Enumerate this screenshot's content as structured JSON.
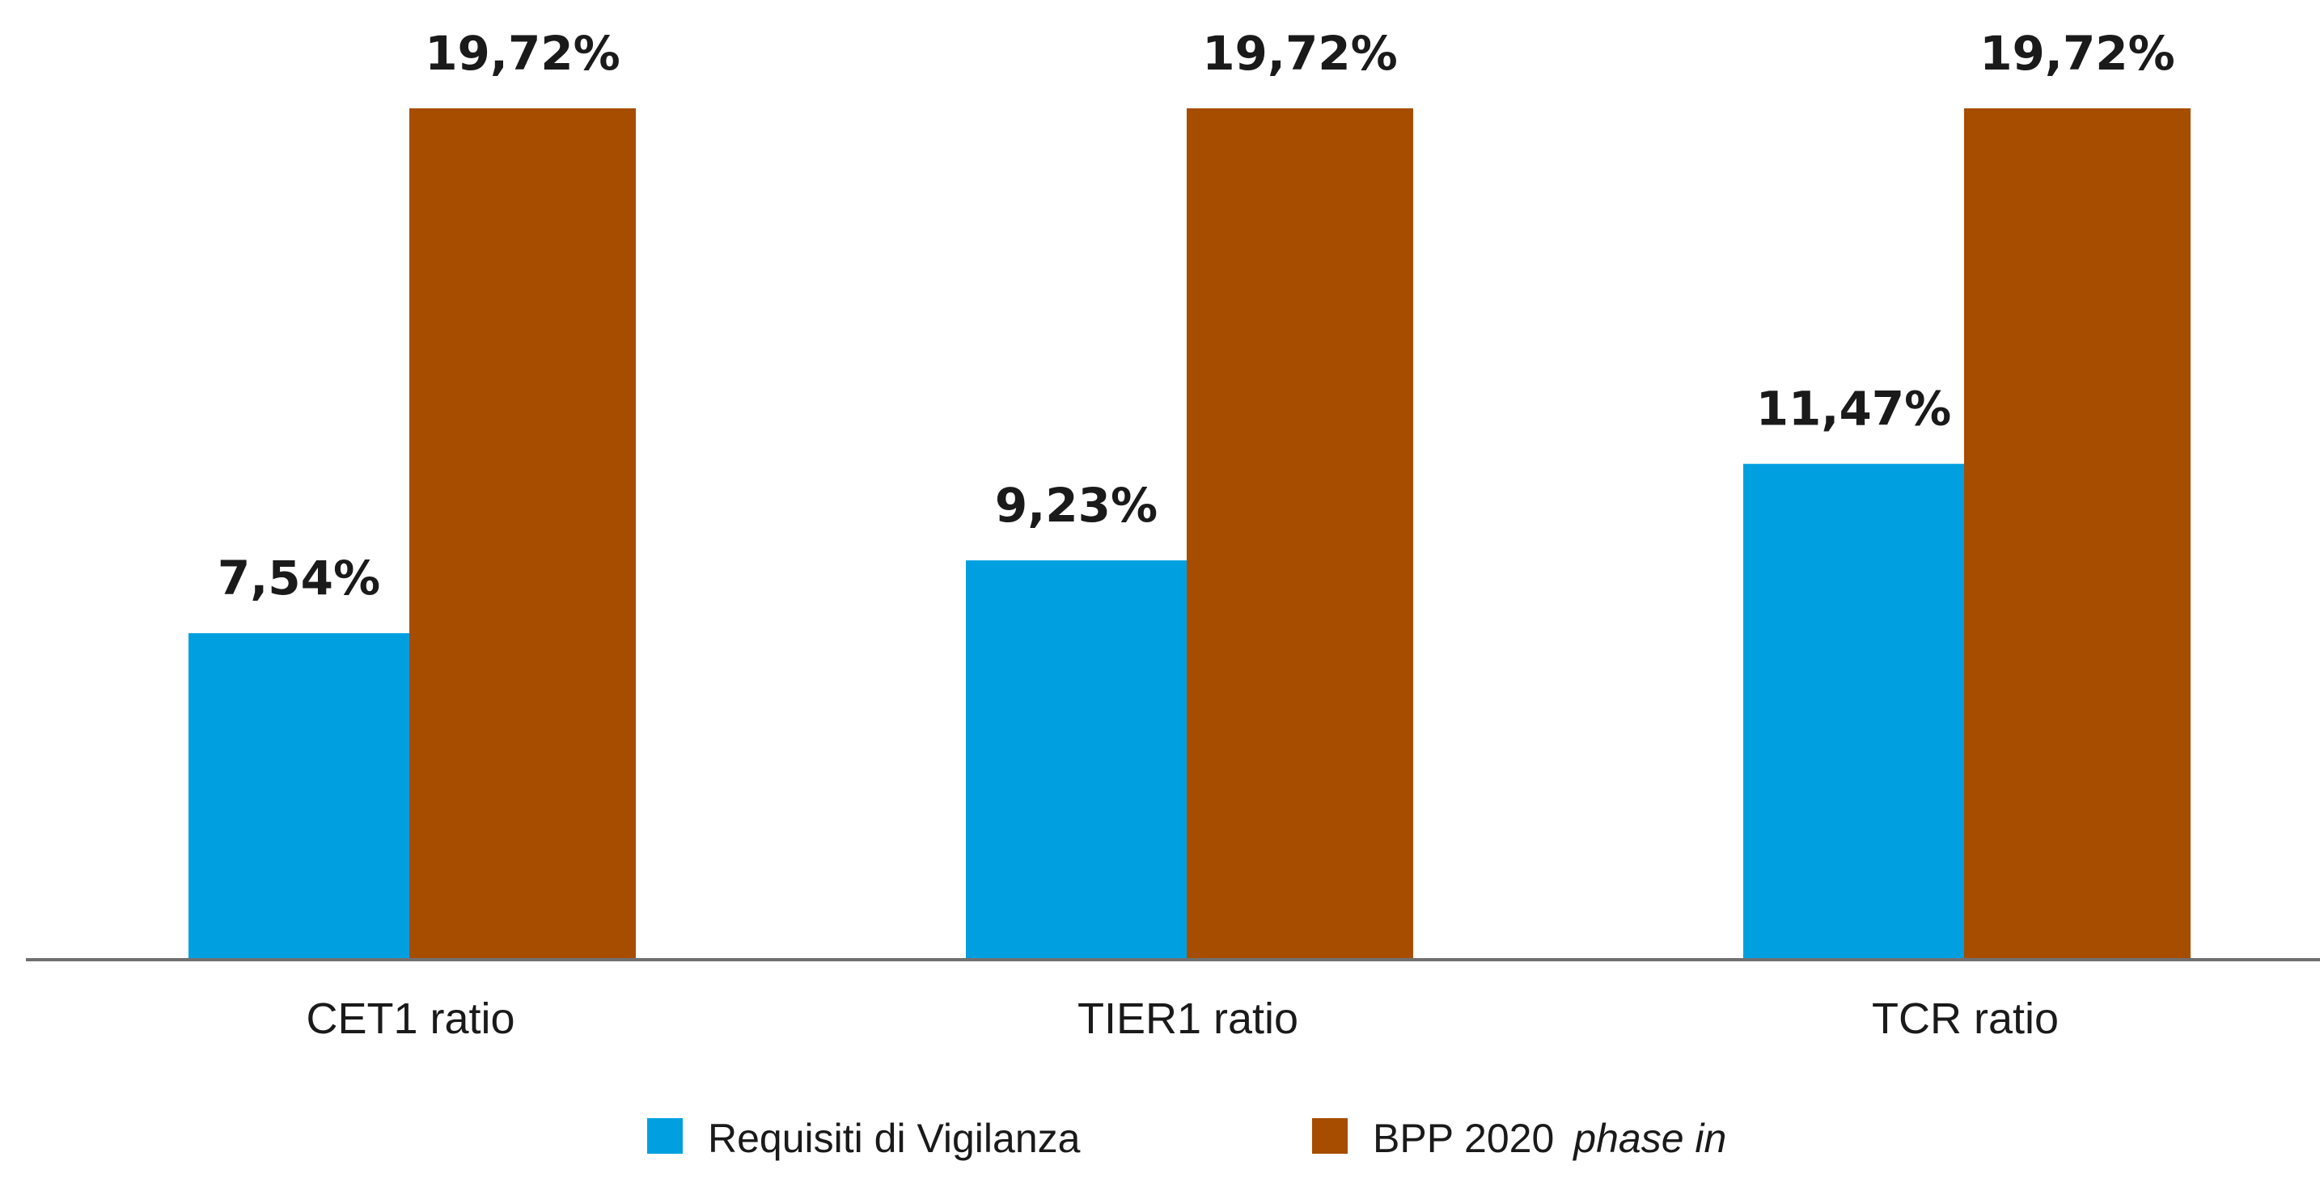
{
  "chart_data": {
    "type": "bar",
    "title": "",
    "xlabel": "",
    "ylabel": "",
    "ylim": [
      0,
      21.0
    ],
    "grid": false,
    "legend_position": "bottom-center",
    "categories": [
      "CET1 ratio",
      "TIER1 ratio",
      "TCR ratio"
    ],
    "series": [
      {
        "name": "Requisiti di Vigilanza",
        "color": "#00A0E0",
        "values": [
          7.54,
          9.23,
          11.47
        ],
        "labels": [
          "7,54%",
          "9,23%",
          "11,47%"
        ]
      },
      {
        "name": "BPP 2020",
        "name_suffix": "phase in",
        "color": "#A64D00",
        "values": [
          19.72,
          19.72,
          19.72
        ],
        "labels": [
          "19,72%",
          "19,72%",
          "19,72%"
        ]
      }
    ],
    "axis_color": "#707070"
  }
}
